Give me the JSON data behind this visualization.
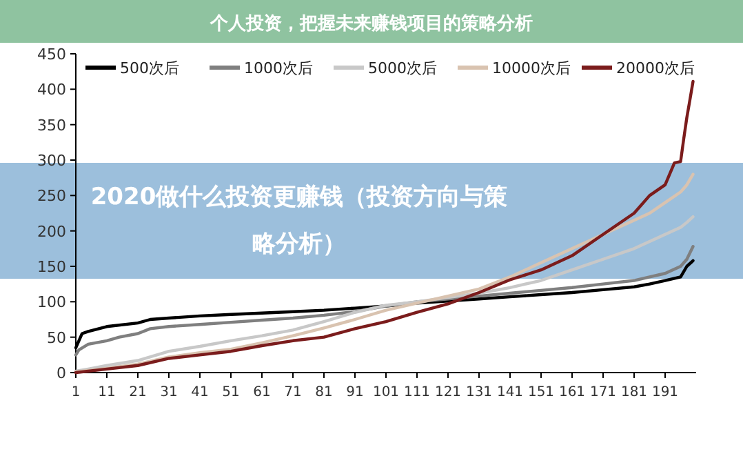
{
  "chart_data": {
    "type": "line",
    "title": "个人投资，把握未来赚钱项目的策略分析",
    "subtitle": "2020做什么投资更赚钱（投资方向与策略分析）",
    "xlim": [
      1,
      201
    ],
    "xticks": [
      1,
      11,
      21,
      31,
      41,
      51,
      61,
      71,
      81,
      91,
      101,
      111,
      121,
      131,
      141,
      151,
      161,
      171,
      181,
      191
    ],
    "ylim": [
      0,
      450
    ],
    "yticks": [
      0,
      50,
      100,
      150,
      200,
      250,
      300,
      350,
      400,
      450
    ],
    "grid": false,
    "legend": "top",
    "marker": "none",
    "line_style": "solid",
    "series": [
      {
        "name": "500次后",
        "color": "#000000",
        "x": [
          1,
          2,
          3,
          5,
          11,
          21,
          25,
          31,
          41,
          51,
          61,
          71,
          81,
          91,
          101,
          111,
          121,
          131,
          141,
          151,
          161,
          171,
          181,
          186,
          191,
          196,
          198,
          200
        ],
        "values": [
          35,
          45,
          55,
          58,
          65,
          70,
          75,
          77,
          80,
          82,
          84,
          86,
          88,
          91,
          94,
          98,
          101,
          104,
          107,
          110,
          113,
          117,
          121,
          125,
          130,
          135,
          150,
          158
        ]
      },
      {
        "name": "1000次后",
        "color": "#7f7f7f",
        "x": [
          1,
          2,
          5,
          11,
          15,
          21,
          25,
          31,
          41,
          51,
          61,
          71,
          81,
          91,
          101,
          111,
          121,
          131,
          141,
          151,
          161,
          171,
          181,
          186,
          191,
          196,
          198,
          200
        ],
        "values": [
          25,
          32,
          40,
          45,
          50,
          55,
          62,
          65,
          68,
          71,
          74,
          77,
          81,
          86,
          94,
          100,
          104,
          108,
          112,
          116,
          120,
          125,
          130,
          135,
          140,
          150,
          160,
          178
        ]
      },
      {
        "name": "5000次后",
        "color": "#c8c8c8",
        "x": [
          1,
          5,
          11,
          21,
          31,
          41,
          51,
          61,
          71,
          81,
          91,
          101,
          111,
          121,
          131,
          141,
          151,
          161,
          171,
          181,
          186,
          191,
          196,
          198,
          200
        ],
        "values": [
          2,
          5,
          10,
          17,
          30,
          37,
          45,
          52,
          60,
          72,
          85,
          95,
          100,
          106,
          112,
          120,
          130,
          145,
          160,
          175,
          185,
          195,
          205,
          212,
          220
        ]
      },
      {
        "name": "10000次后",
        "color": "#d9c3b0",
        "x": [
          1,
          5,
          11,
          21,
          31,
          41,
          51,
          61,
          71,
          81,
          91,
          101,
          111,
          121,
          131,
          141,
          151,
          161,
          171,
          181,
          186,
          191,
          196,
          198,
          200
        ],
        "values": [
          1,
          3,
          6,
          12,
          22,
          28,
          33,
          42,
          52,
          63,
          75,
          88,
          98,
          108,
          118,
          135,
          155,
          175,
          195,
          215,
          225,
          240,
          255,
          265,
          280
        ]
      },
      {
        "name": "20000次后",
        "color": "#7b1c1c",
        "x": [
          1,
          11,
          21,
          31,
          41,
          51,
          61,
          71,
          81,
          91,
          101,
          111,
          121,
          131,
          141,
          151,
          161,
          171,
          181,
          186,
          191,
          194,
          196,
          197,
          198,
          199,
          200
        ],
        "values": [
          0,
          5,
          10,
          20,
          25,
          30,
          38,
          45,
          50,
          62,
          72,
          85,
          97,
          113,
          131,
          145,
          165,
          195,
          225,
          250,
          265,
          296,
          298,
          330,
          360,
          385,
          411
        ]
      }
    ]
  }
}
